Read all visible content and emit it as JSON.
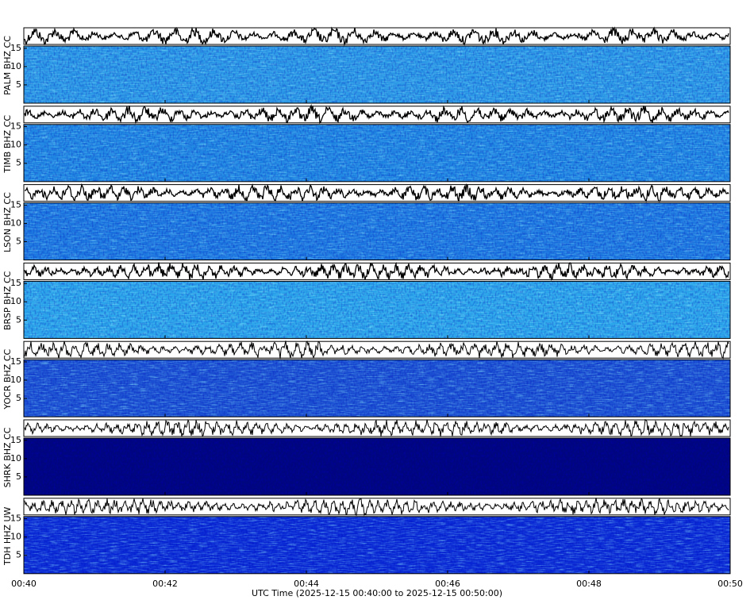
{
  "chart_data": {
    "type": "spectrogram",
    "xlabel": "UTC Time (2025-12-15 00:40:00 to 2025-12-15 00:50:00)",
    "xlim": [
      "00:40",
      "00:50"
    ],
    "xticks": [
      "00:40",
      "00:42",
      "00:44",
      "00:46",
      "00:48",
      "00:50"
    ],
    "panels": [
      {
        "label": "PALM BHZ CC",
        "ylim": [
          0,
          15.6
        ],
        "yticks": [
          5,
          10,
          15
        ],
        "color": "#2a98e6"
      },
      {
        "label": "TIMB BHZ CC",
        "ylim": [
          0,
          15.6
        ],
        "yticks": [
          5,
          10,
          15
        ],
        "color": "#1f86e2"
      },
      {
        "label": "LSON BHZ CC",
        "ylim": [
          0,
          15.6
        ],
        "yticks": [
          5,
          10,
          15
        ],
        "color": "#1c78e0"
      },
      {
        "label": "BRSP BHZ CC",
        "ylim": [
          0,
          15.6
        ],
        "yticks": [
          5,
          10,
          15
        ],
        "color": "#2aa4ea"
      },
      {
        "label": "YOCR BHZ CC",
        "ylim": [
          0,
          15.6
        ],
        "yticks": [
          5,
          10,
          15
        ],
        "color": "#1a4fd2"
      },
      {
        "label": "SHRK BHZ CC",
        "ylim": [
          0,
          15.6
        ],
        "yticks": [
          5,
          10,
          15
        ],
        "color": "#00067f"
      },
      {
        "label": "TDH HHZ UW",
        "ylim": [
          0,
          15.6
        ],
        "yticks": [
          5,
          10,
          15
        ],
        "color": "#0a2ad6"
      }
    ]
  }
}
